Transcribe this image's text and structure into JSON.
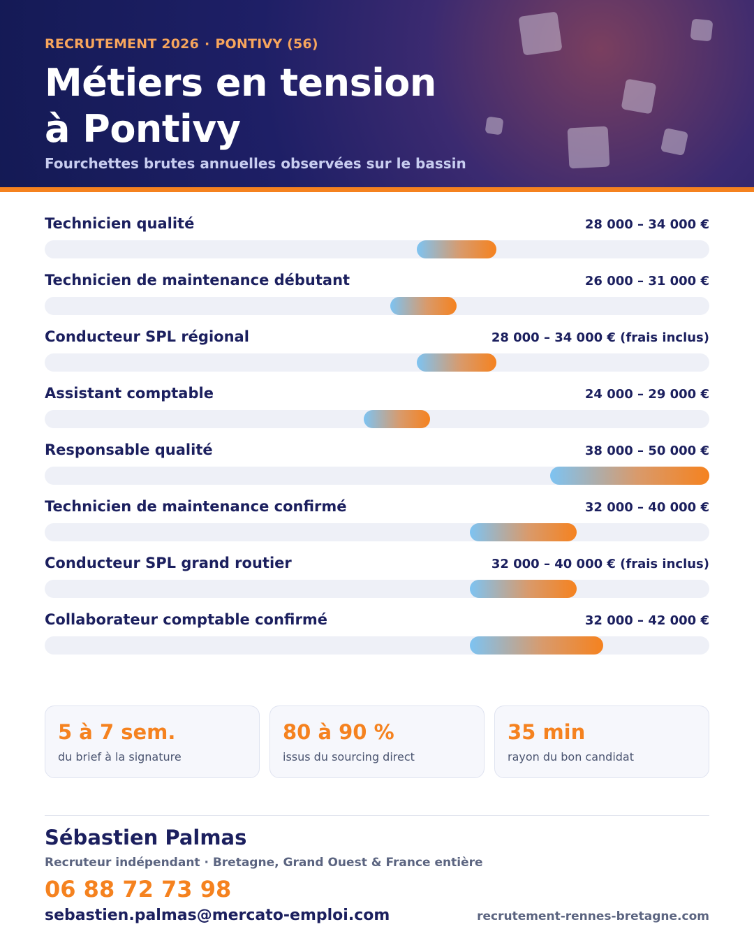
{
  "header": {
    "kicker_left": "RECRUTEMENT 2026",
    "kicker_sep": "·",
    "kicker_right": "PONTIVY (56)",
    "title_line1": "Métiers en tension",
    "title_line2": "à Pontivy",
    "subtitle": "Fourchettes brutes annuelles observées sur le bassin"
  },
  "chart_data": {
    "type": "bar",
    "subtype": "range",
    "unit": "€",
    "xlim": [
      0,
      50000
    ],
    "categories": [
      "Technicien qualité",
      "Technicien de maintenance débutant",
      "Conducteur SPL régional",
      "Assistant comptable",
      "Responsable qualité",
      "Technicien de maintenance confirmé",
      "Conducteur SPL grand routier",
      "Collaborateur comptable confirmé"
    ],
    "ranges": [
      {
        "min": 28000,
        "max": 34000,
        "label": "28 000 – 34 000 €"
      },
      {
        "min": 26000,
        "max": 31000,
        "label": "26 000 – 31 000 €"
      },
      {
        "min": 28000,
        "max": 34000,
        "label": "28 000 – 34 000 € (frais inclus)"
      },
      {
        "min": 24000,
        "max": 29000,
        "label": "24 000 – 29 000 €"
      },
      {
        "min": 38000,
        "max": 50000,
        "label": "38 000 – 50 000 €"
      },
      {
        "min": 32000,
        "max": 40000,
        "label": "32 000 – 40 000 €"
      },
      {
        "min": 32000,
        "max": 40000,
        "label": "32 000 – 40 000 € (frais inclus)"
      },
      {
        "min": 32000,
        "max": 42000,
        "label": "32 000 – 42 000 €"
      }
    ],
    "colors": {
      "gradient_start": "#7dc3f2",
      "gradient_end": "#f5821f",
      "track": "#eef0f7"
    }
  },
  "stats": [
    {
      "value": "5 à 7 sem.",
      "label": "du brief à la signature"
    },
    {
      "value": "80 à 90 %",
      "label": "issus du sourcing direct"
    },
    {
      "value": "35 min",
      "label": "rayon du bon candidat"
    }
  ],
  "contact": {
    "name": "Sébastien Palmas",
    "role": "Recruteur indépendant · Bretagne, Grand Ouest & France entière",
    "phone": "06 88 72 73 98",
    "email": "sebastien.palmas@mercato-emploi.com",
    "website": "recrutement-rennes-bretagne.com"
  },
  "colors": {
    "navy": "#1b1f5e",
    "accent_orange": "#f5821f",
    "kicker_orange": "#f7a55c"
  }
}
